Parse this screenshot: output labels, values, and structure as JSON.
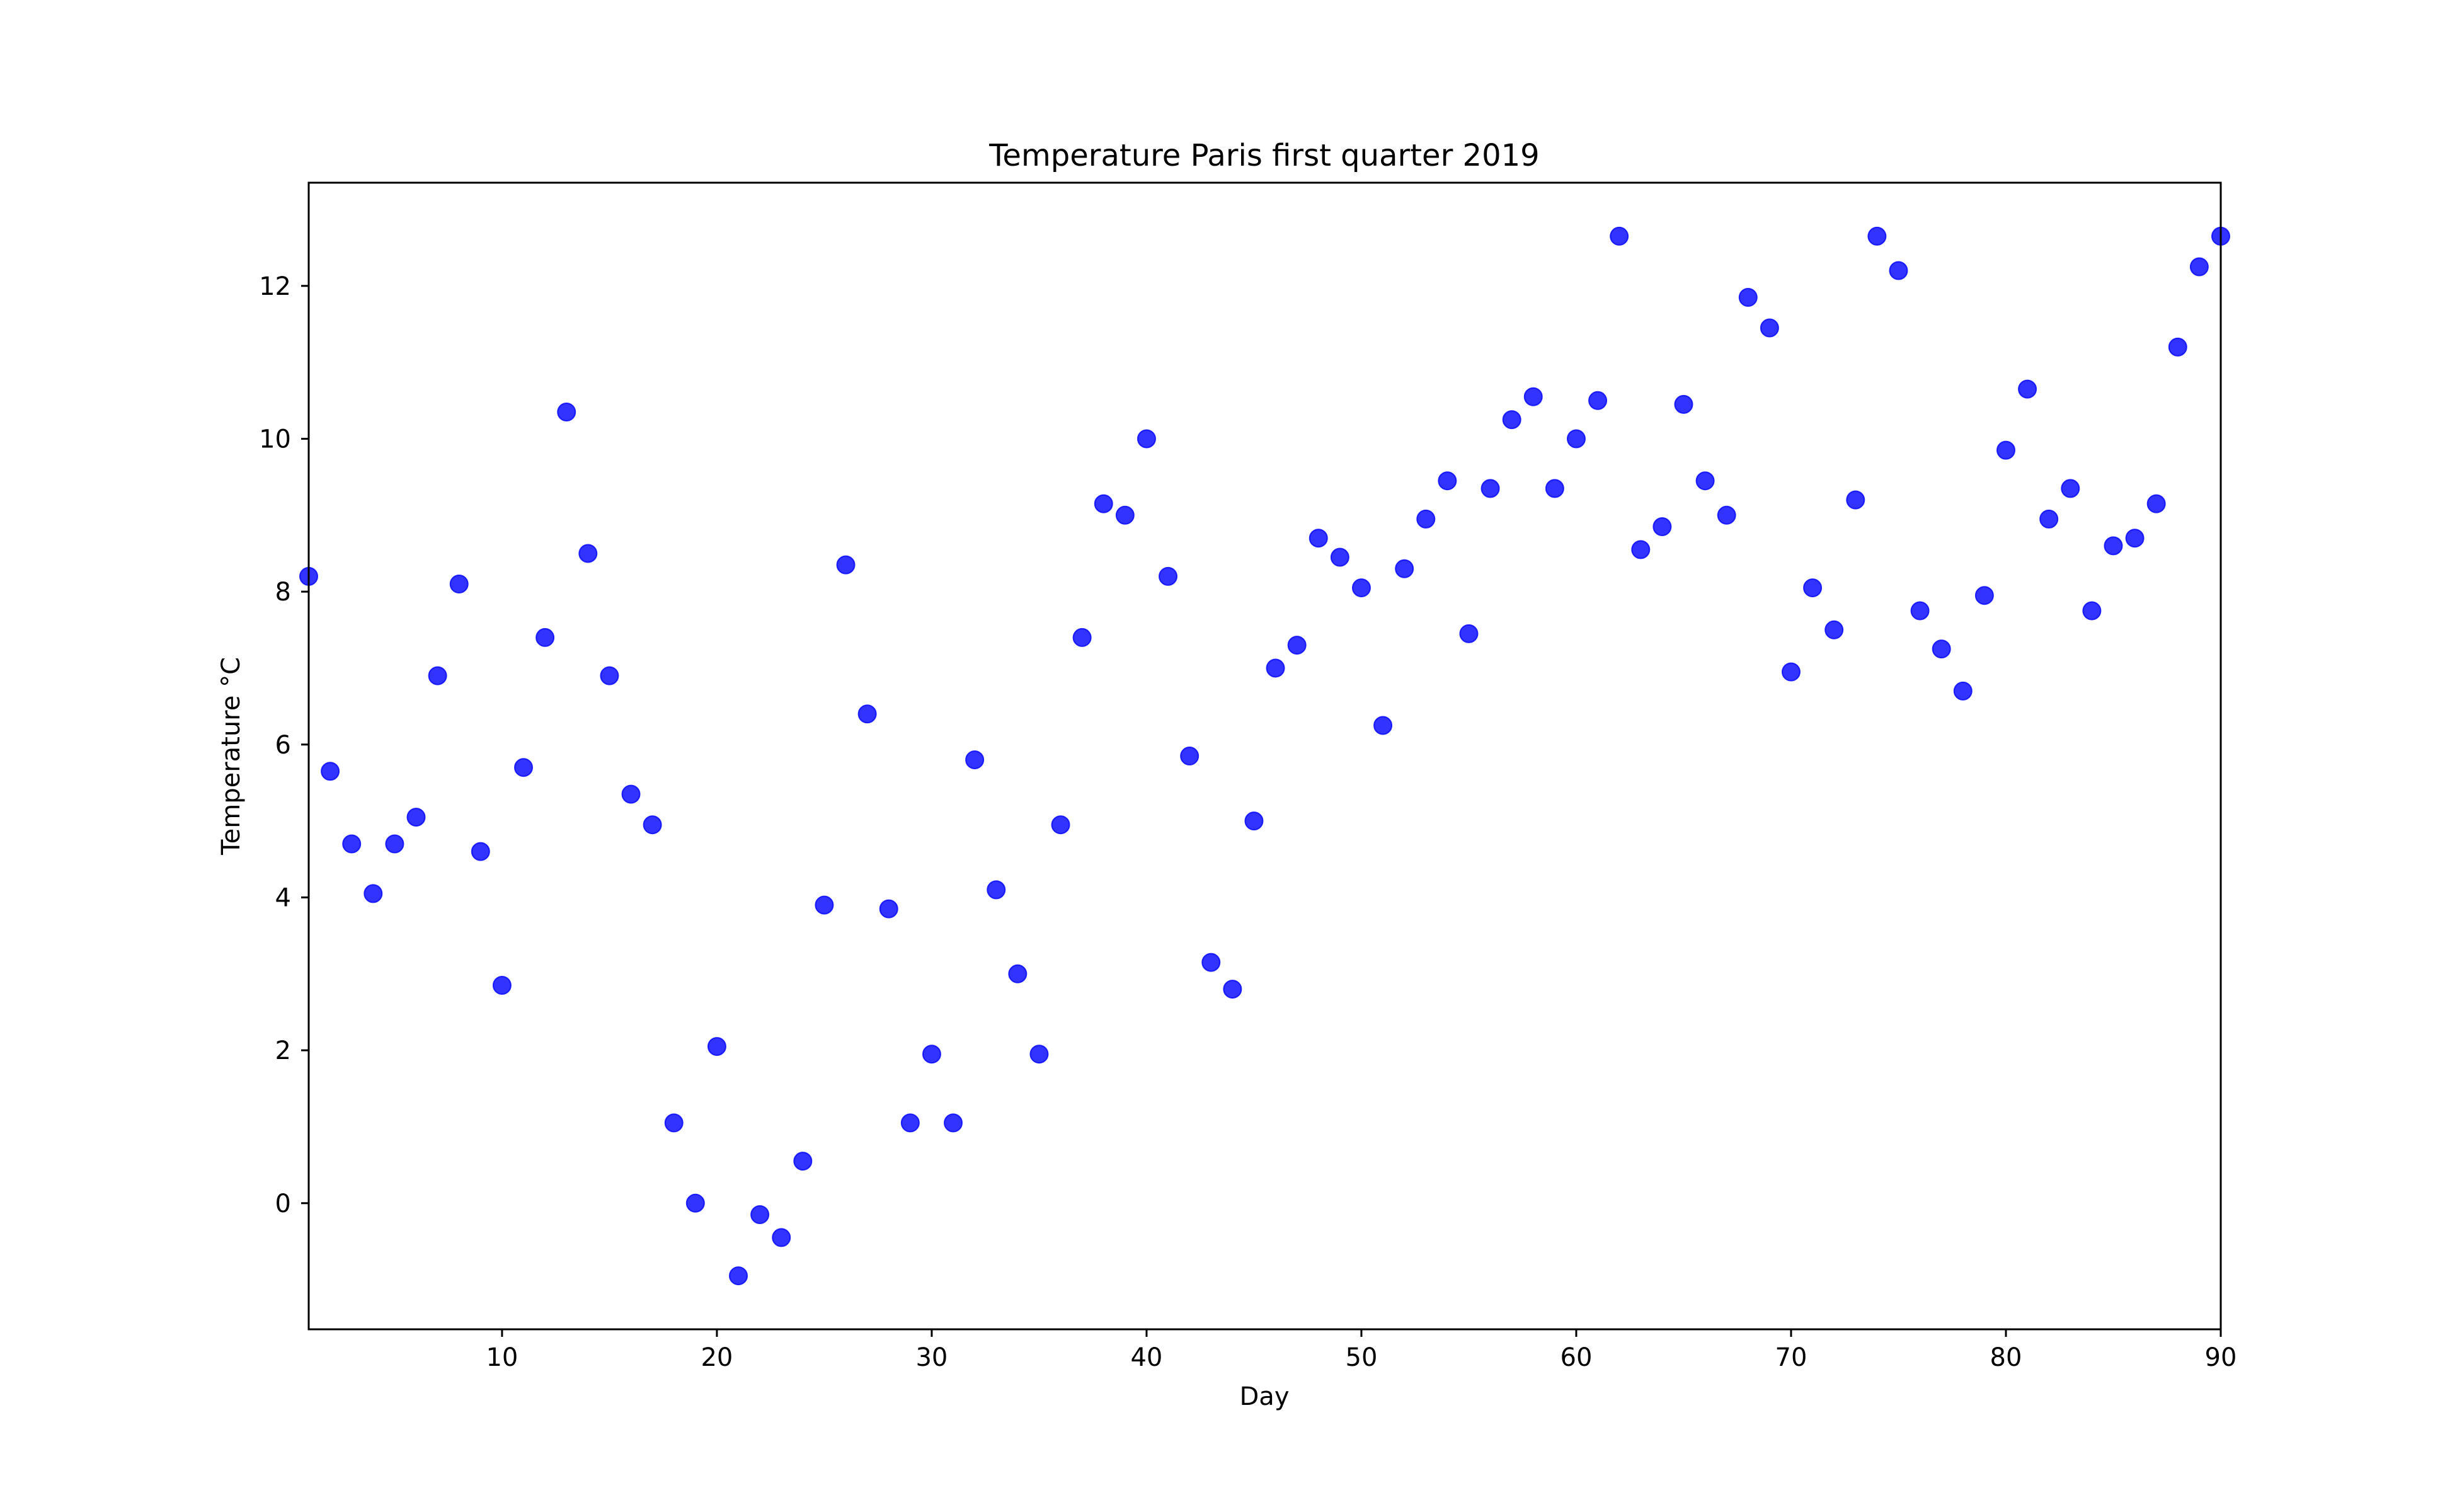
{
  "chart_data": {
    "type": "scatter",
    "title": "Temperature Paris first quarter 2019",
    "xlabel": "Day",
    "ylabel": "Temperature $^\\circ$C",
    "ylabel_display": "Temperature °C",
    "xlim": [
      1,
      90
    ],
    "ylim": [
      -1.65,
      13.35
    ],
    "xticks": [
      10,
      20,
      30,
      40,
      50,
      60,
      70,
      80,
      90
    ],
    "yticks": [
      0,
      2,
      4,
      6,
      8,
      10,
      12
    ],
    "grid": false,
    "legend": "none",
    "marker_color": "#0000ff",
    "marker_alpha": 0.8,
    "points": [
      {
        "x": 1,
        "y": 8.2
      },
      {
        "x": 2,
        "y": 5.65
      },
      {
        "x": 3,
        "y": 4.7
      },
      {
        "x": 4,
        "y": 4.05
      },
      {
        "x": 5,
        "y": 4.7
      },
      {
        "x": 6,
        "y": 5.05
      },
      {
        "x": 7,
        "y": 6.9
      },
      {
        "x": 8,
        "y": 8.1
      },
      {
        "x": 9,
        "y": 4.6
      },
      {
        "x": 10,
        "y": 2.85
      },
      {
        "x": 11,
        "y": 5.7
      },
      {
        "x": 12,
        "y": 7.4
      },
      {
        "x": 13,
        "y": 10.35
      },
      {
        "x": 14,
        "y": 8.5
      },
      {
        "x": 15,
        "y": 6.9
      },
      {
        "x": 16,
        "y": 5.35
      },
      {
        "x": 17,
        "y": 4.95
      },
      {
        "x": 18,
        "y": 1.05
      },
      {
        "x": 19,
        "y": 0.0
      },
      {
        "x": 20,
        "y": 2.05
      },
      {
        "x": 21,
        "y": -0.95
      },
      {
        "x": 22,
        "y": -0.15
      },
      {
        "x": 23,
        "y": -0.45
      },
      {
        "x": 24,
        "y": 0.55
      },
      {
        "x": 25,
        "y": 3.9
      },
      {
        "x": 26,
        "y": 8.35
      },
      {
        "x": 27,
        "y": 6.4
      },
      {
        "x": 28,
        "y": 3.85
      },
      {
        "x": 29,
        "y": 1.05
      },
      {
        "x": 30,
        "y": 1.95
      },
      {
        "x": 31,
        "y": 1.05
      },
      {
        "x": 32,
        "y": 5.8
      },
      {
        "x": 33,
        "y": 4.1
      },
      {
        "x": 34,
        "y": 3.0
      },
      {
        "x": 35,
        "y": 1.95
      },
      {
        "x": 36,
        "y": 4.95
      },
      {
        "x": 37,
        "y": 7.4
      },
      {
        "x": 38,
        "y": 9.15
      },
      {
        "x": 39,
        "y": 9.0
      },
      {
        "x": 40,
        "y": 10.0
      },
      {
        "x": 41,
        "y": 8.2
      },
      {
        "x": 42,
        "y": 5.85
      },
      {
        "x": 43,
        "y": 3.15
      },
      {
        "x": 44,
        "y": 2.8
      },
      {
        "x": 45,
        "y": 5.0
      },
      {
        "x": 46,
        "y": 7.0
      },
      {
        "x": 47,
        "y": 7.3
      },
      {
        "x": 48,
        "y": 8.7
      },
      {
        "x": 49,
        "y": 8.45
      },
      {
        "x": 50,
        "y": 8.05
      },
      {
        "x": 51,
        "y": 6.25
      },
      {
        "x": 52,
        "y": 8.3
      },
      {
        "x": 53,
        "y": 8.95
      },
      {
        "x": 54,
        "y": 9.45
      },
      {
        "x": 55,
        "y": 7.45
      },
      {
        "x": 56,
        "y": 9.35
      },
      {
        "x": 57,
        "y": 10.25
      },
      {
        "x": 58,
        "y": 10.55
      },
      {
        "x": 59,
        "y": 9.35
      },
      {
        "x": 60,
        "y": 10.0
      },
      {
        "x": 61,
        "y": 10.5
      },
      {
        "x": 62,
        "y": 12.65
      },
      {
        "x": 63,
        "y": 8.55
      },
      {
        "x": 64,
        "y": 8.85
      },
      {
        "x": 65,
        "y": 10.45
      },
      {
        "x": 66,
        "y": 9.45
      },
      {
        "x": 67,
        "y": 9.0
      },
      {
        "x": 68,
        "y": 11.85
      },
      {
        "x": 69,
        "y": 11.45
      },
      {
        "x": 70,
        "y": 6.95
      },
      {
        "x": 71,
        "y": 8.05
      },
      {
        "x": 72,
        "y": 7.5
      },
      {
        "x": 73,
        "y": 9.2
      },
      {
        "x": 74,
        "y": 12.65
      },
      {
        "x": 75,
        "y": 12.2
      },
      {
        "x": 76,
        "y": 7.75
      },
      {
        "x": 77,
        "y": 7.25
      },
      {
        "x": 78,
        "y": 6.7
      },
      {
        "x": 79,
        "y": 7.95
      },
      {
        "x": 80,
        "y": 9.85
      },
      {
        "x": 81,
        "y": 10.65
      },
      {
        "x": 82,
        "y": 8.95
      },
      {
        "x": 83,
        "y": 9.35
      },
      {
        "x": 84,
        "y": 7.75
      },
      {
        "x": 85,
        "y": 8.6
      },
      {
        "x": 86,
        "y": 8.7
      },
      {
        "x": 87,
        "y": 9.15
      },
      {
        "x": 88,
        "y": 11.2
      },
      {
        "x": 89,
        "y": 12.25
      },
      {
        "x": 90,
        "y": 12.65
      }
    ]
  }
}
